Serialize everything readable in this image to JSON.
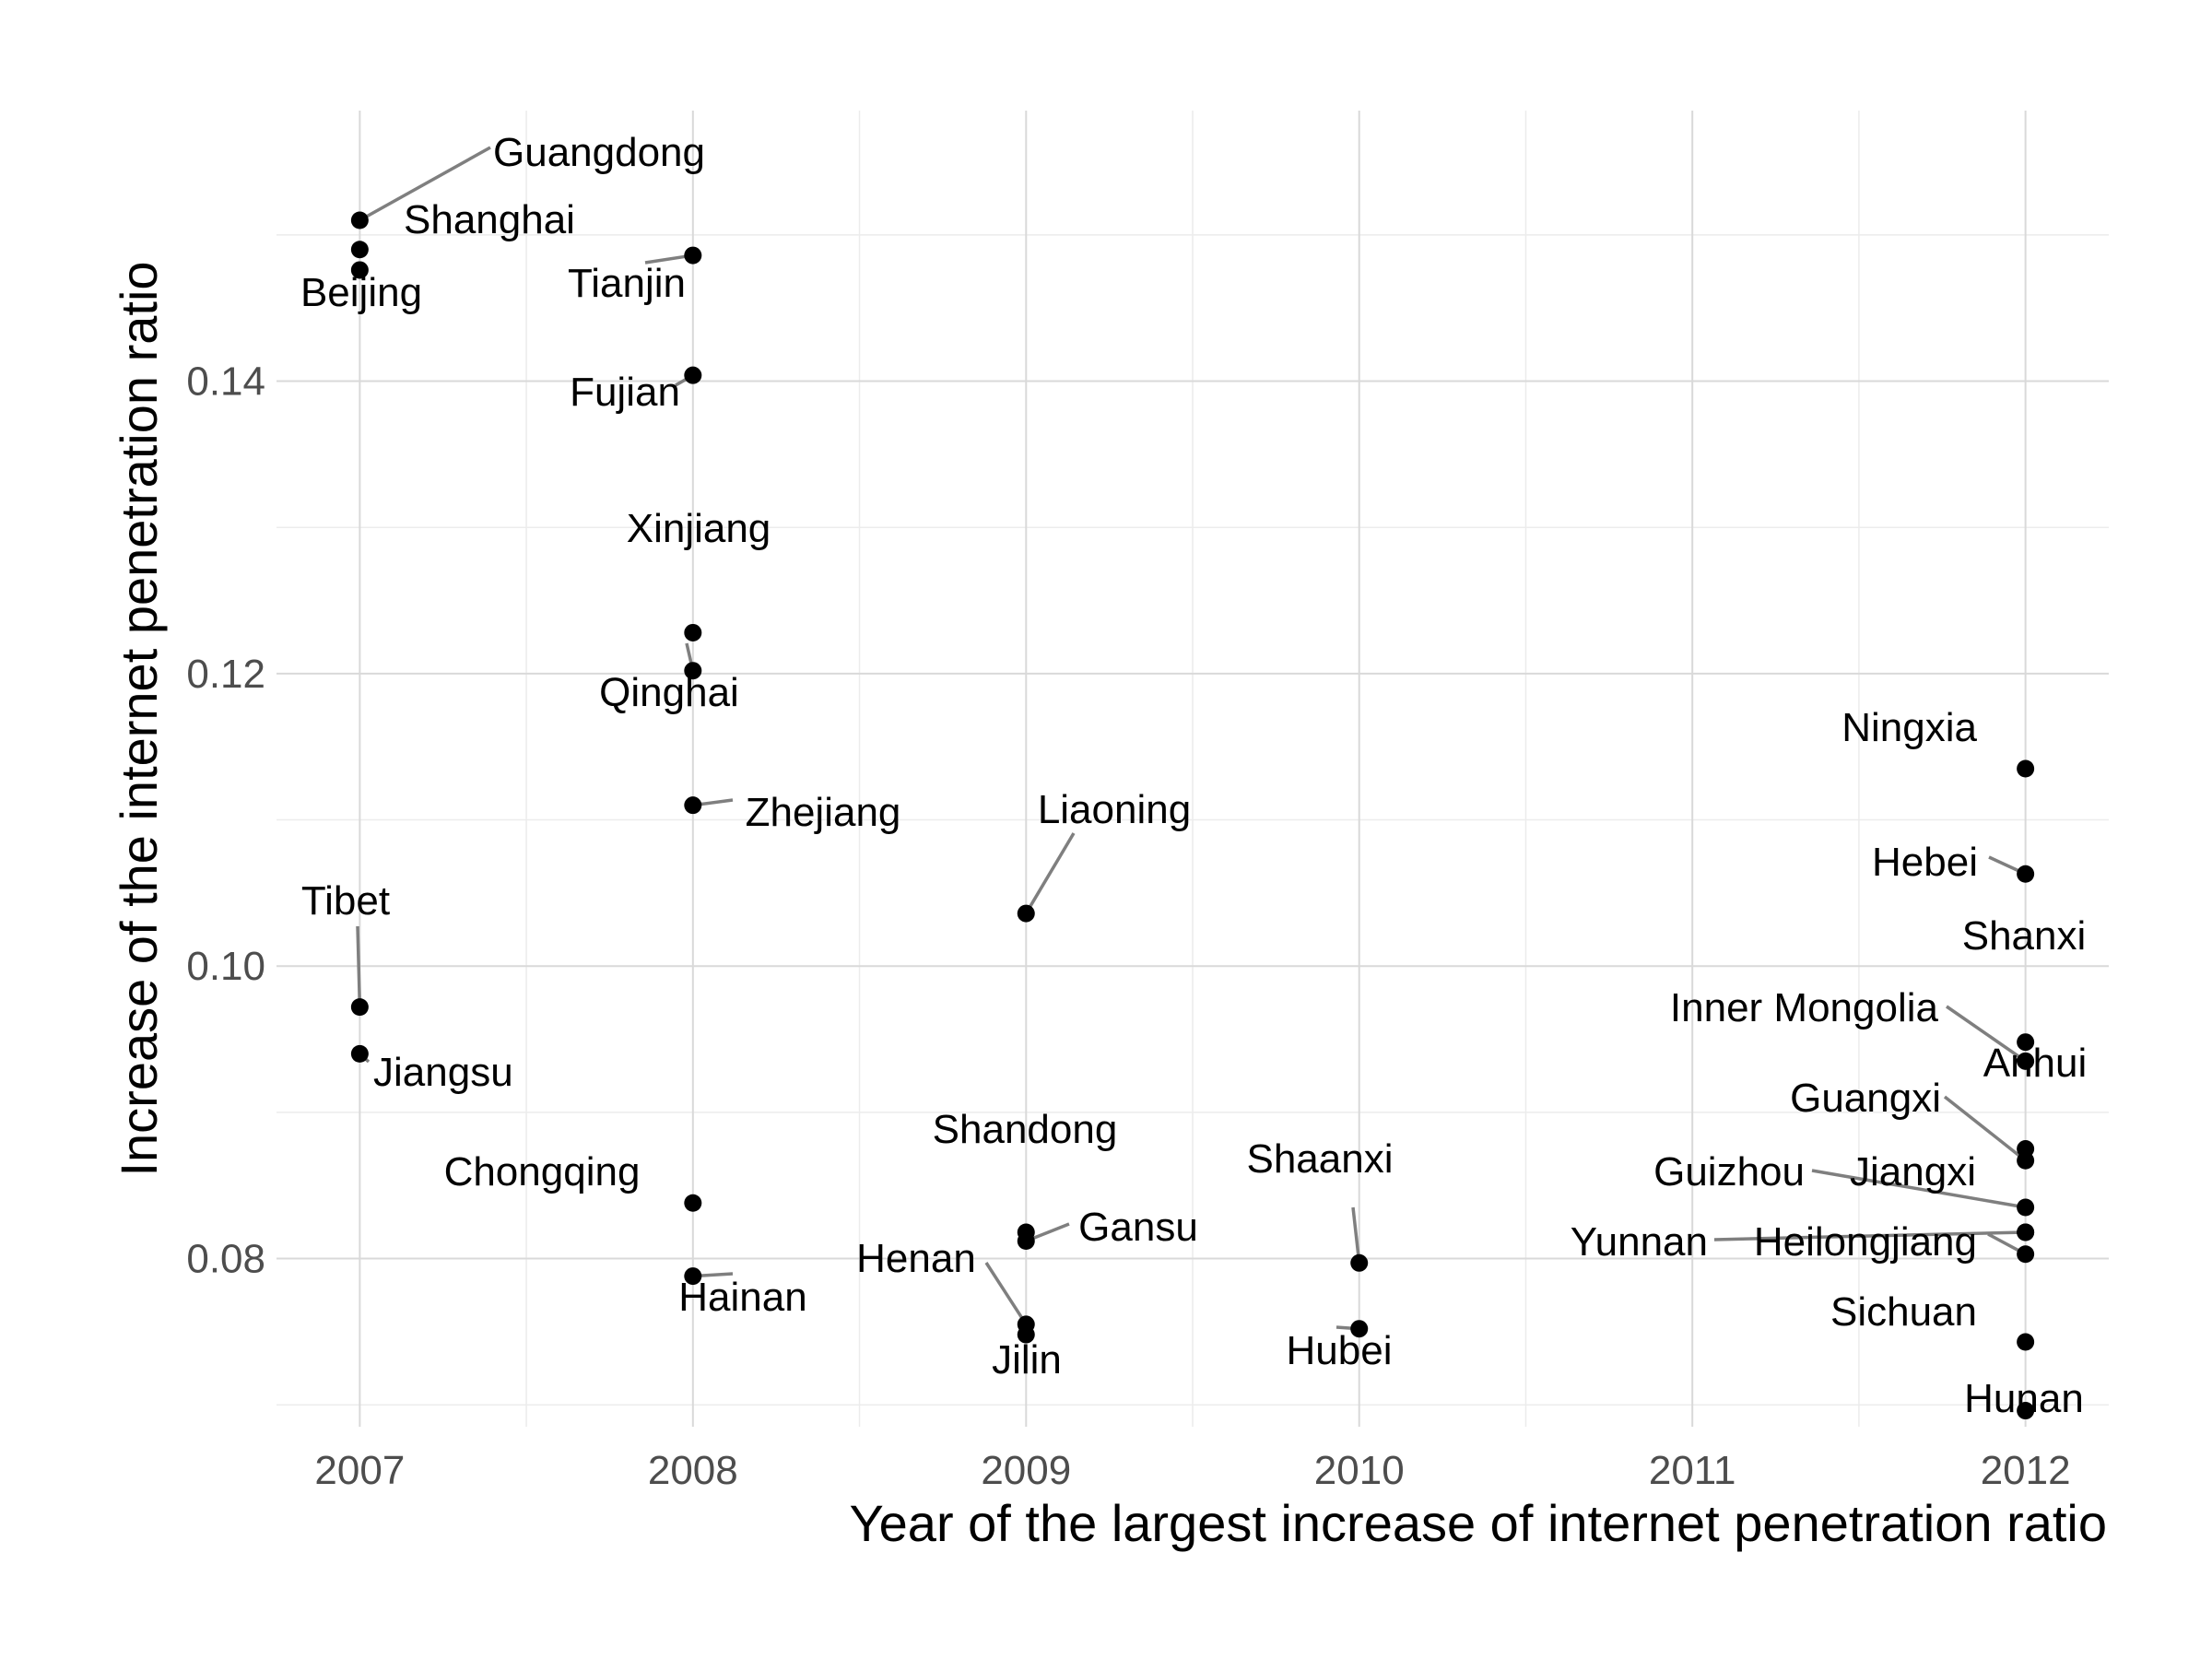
{
  "chart_data": {
    "type": "scatter",
    "xlabel": "Year of the largest increase of internet penetration ratio",
    "ylabel": "Increase of the internet penetration ratio",
    "xlim": [
      2006.75,
      2012.25
    ],
    "ylim": [
      0.0685,
      0.1585
    ],
    "x_ticks": [
      2007,
      2008,
      2009,
      2010,
      2011,
      2012
    ],
    "x_tick_labels": [
      "2007",
      "2008",
      "2009",
      "2010",
      "2011",
      "2012"
    ],
    "y_ticks": [
      0.08,
      0.1,
      0.12,
      0.14
    ],
    "y_tick_labels": [
      "0.08",
      "0.10",
      "0.12",
      "0.14"
    ],
    "grid": true,
    "point_color": "#000000",
    "leader_color": "#7f7f7f",
    "points": [
      {
        "label": "Guangdong",
        "x": 2007,
        "y": 0.151
      },
      {
        "label": "Shanghai",
        "x": 2007,
        "y": 0.149
      },
      {
        "label": "Beijing",
        "x": 2007,
        "y": 0.1476
      },
      {
        "label": "Tibet",
        "x": 2007,
        "y": 0.0972
      },
      {
        "label": "Jiangsu",
        "x": 2007,
        "y": 0.094
      },
      {
        "label": "Tianjin",
        "x": 2008,
        "y": 0.1486
      },
      {
        "label": "Fujian",
        "x": 2008,
        "y": 0.1404
      },
      {
        "label": "Xinjiang",
        "x": 2008,
        "y": 0.1228
      },
      {
        "label": "Qinghai",
        "x": 2008,
        "y": 0.1202
      },
      {
        "label": "Zhejiang",
        "x": 2008,
        "y": 0.111
      },
      {
        "label": "Chongqing",
        "x": 2008,
        "y": 0.0838
      },
      {
        "label": "Hainan",
        "x": 2008,
        "y": 0.0788
      },
      {
        "label": "Liaoning",
        "x": 2009,
        "y": 0.1036
      },
      {
        "label": "Shandong",
        "x": 2009,
        "y": 0.0818
      },
      {
        "label": "Gansu",
        "x": 2009,
        "y": 0.0812
      },
      {
        "label": "Henan",
        "x": 2009,
        "y": 0.0755
      },
      {
        "label": "Jilin",
        "x": 2009,
        "y": 0.0748
      },
      {
        "label": "Shaanxi",
        "x": 2010,
        "y": 0.0797
      },
      {
        "label": "Hubei",
        "x": 2010,
        "y": 0.0752
      },
      {
        "label": "Ningxia",
        "x": 2012,
        "y": 0.1135
      },
      {
        "label": "Hebei",
        "x": 2012,
        "y": 0.1063
      },
      {
        "label": "Shanxi",
        "x": 2012,
        "y": 0.0948
      },
      {
        "label": "Inner Mongolia",
        "x": 2012,
        "y": 0.0935
      },
      {
        "label": "Anhui",
        "x": 2012,
        "y": 0.0875
      },
      {
        "label": "Guangxi",
        "x": 2012,
        "y": 0.0867
      },
      {
        "label": "Guizhou",
        "x": 2012,
        "y": 0.0835
      },
      {
        "label": "Jiangxi",
        "x": 2012,
        "y": 0.0818
      },
      {
        "label": "Yunnan",
        "x": 2012,
        "y": 0.0818
      },
      {
        "label": "Heilongjiang",
        "x": 2012,
        "y": 0.0803
      },
      {
        "label": "Sichuan",
        "x": 2012,
        "y": 0.0743
      },
      {
        "label": "Hunan",
        "x": 2012,
        "y": 0.0696
      }
    ]
  }
}
